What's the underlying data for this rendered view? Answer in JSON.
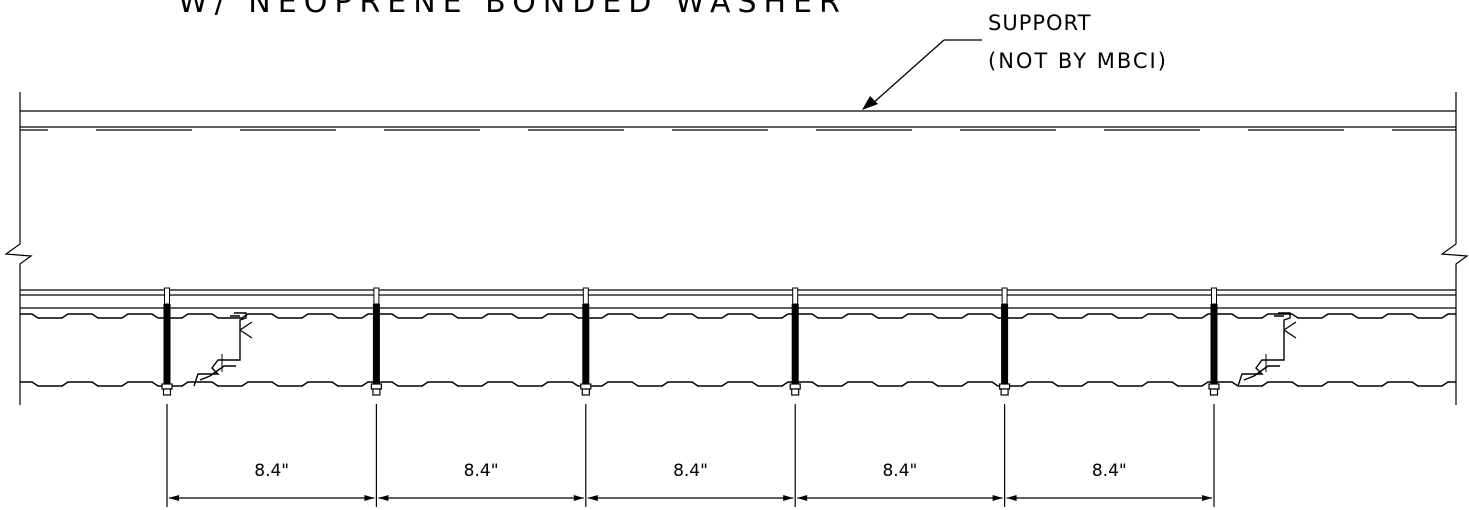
{
  "title_fragment": "W/ NEOPRENE BONDED WASHER",
  "support_callout": {
    "line1": "SUPPORT",
    "line2": "(NOT BY MBCI)"
  },
  "fastener_count": 6,
  "spacing_dimensions": [
    "8.4\"",
    "8.4\"",
    "8.4\"",
    "8.4\"",
    "8.4\""
  ]
}
